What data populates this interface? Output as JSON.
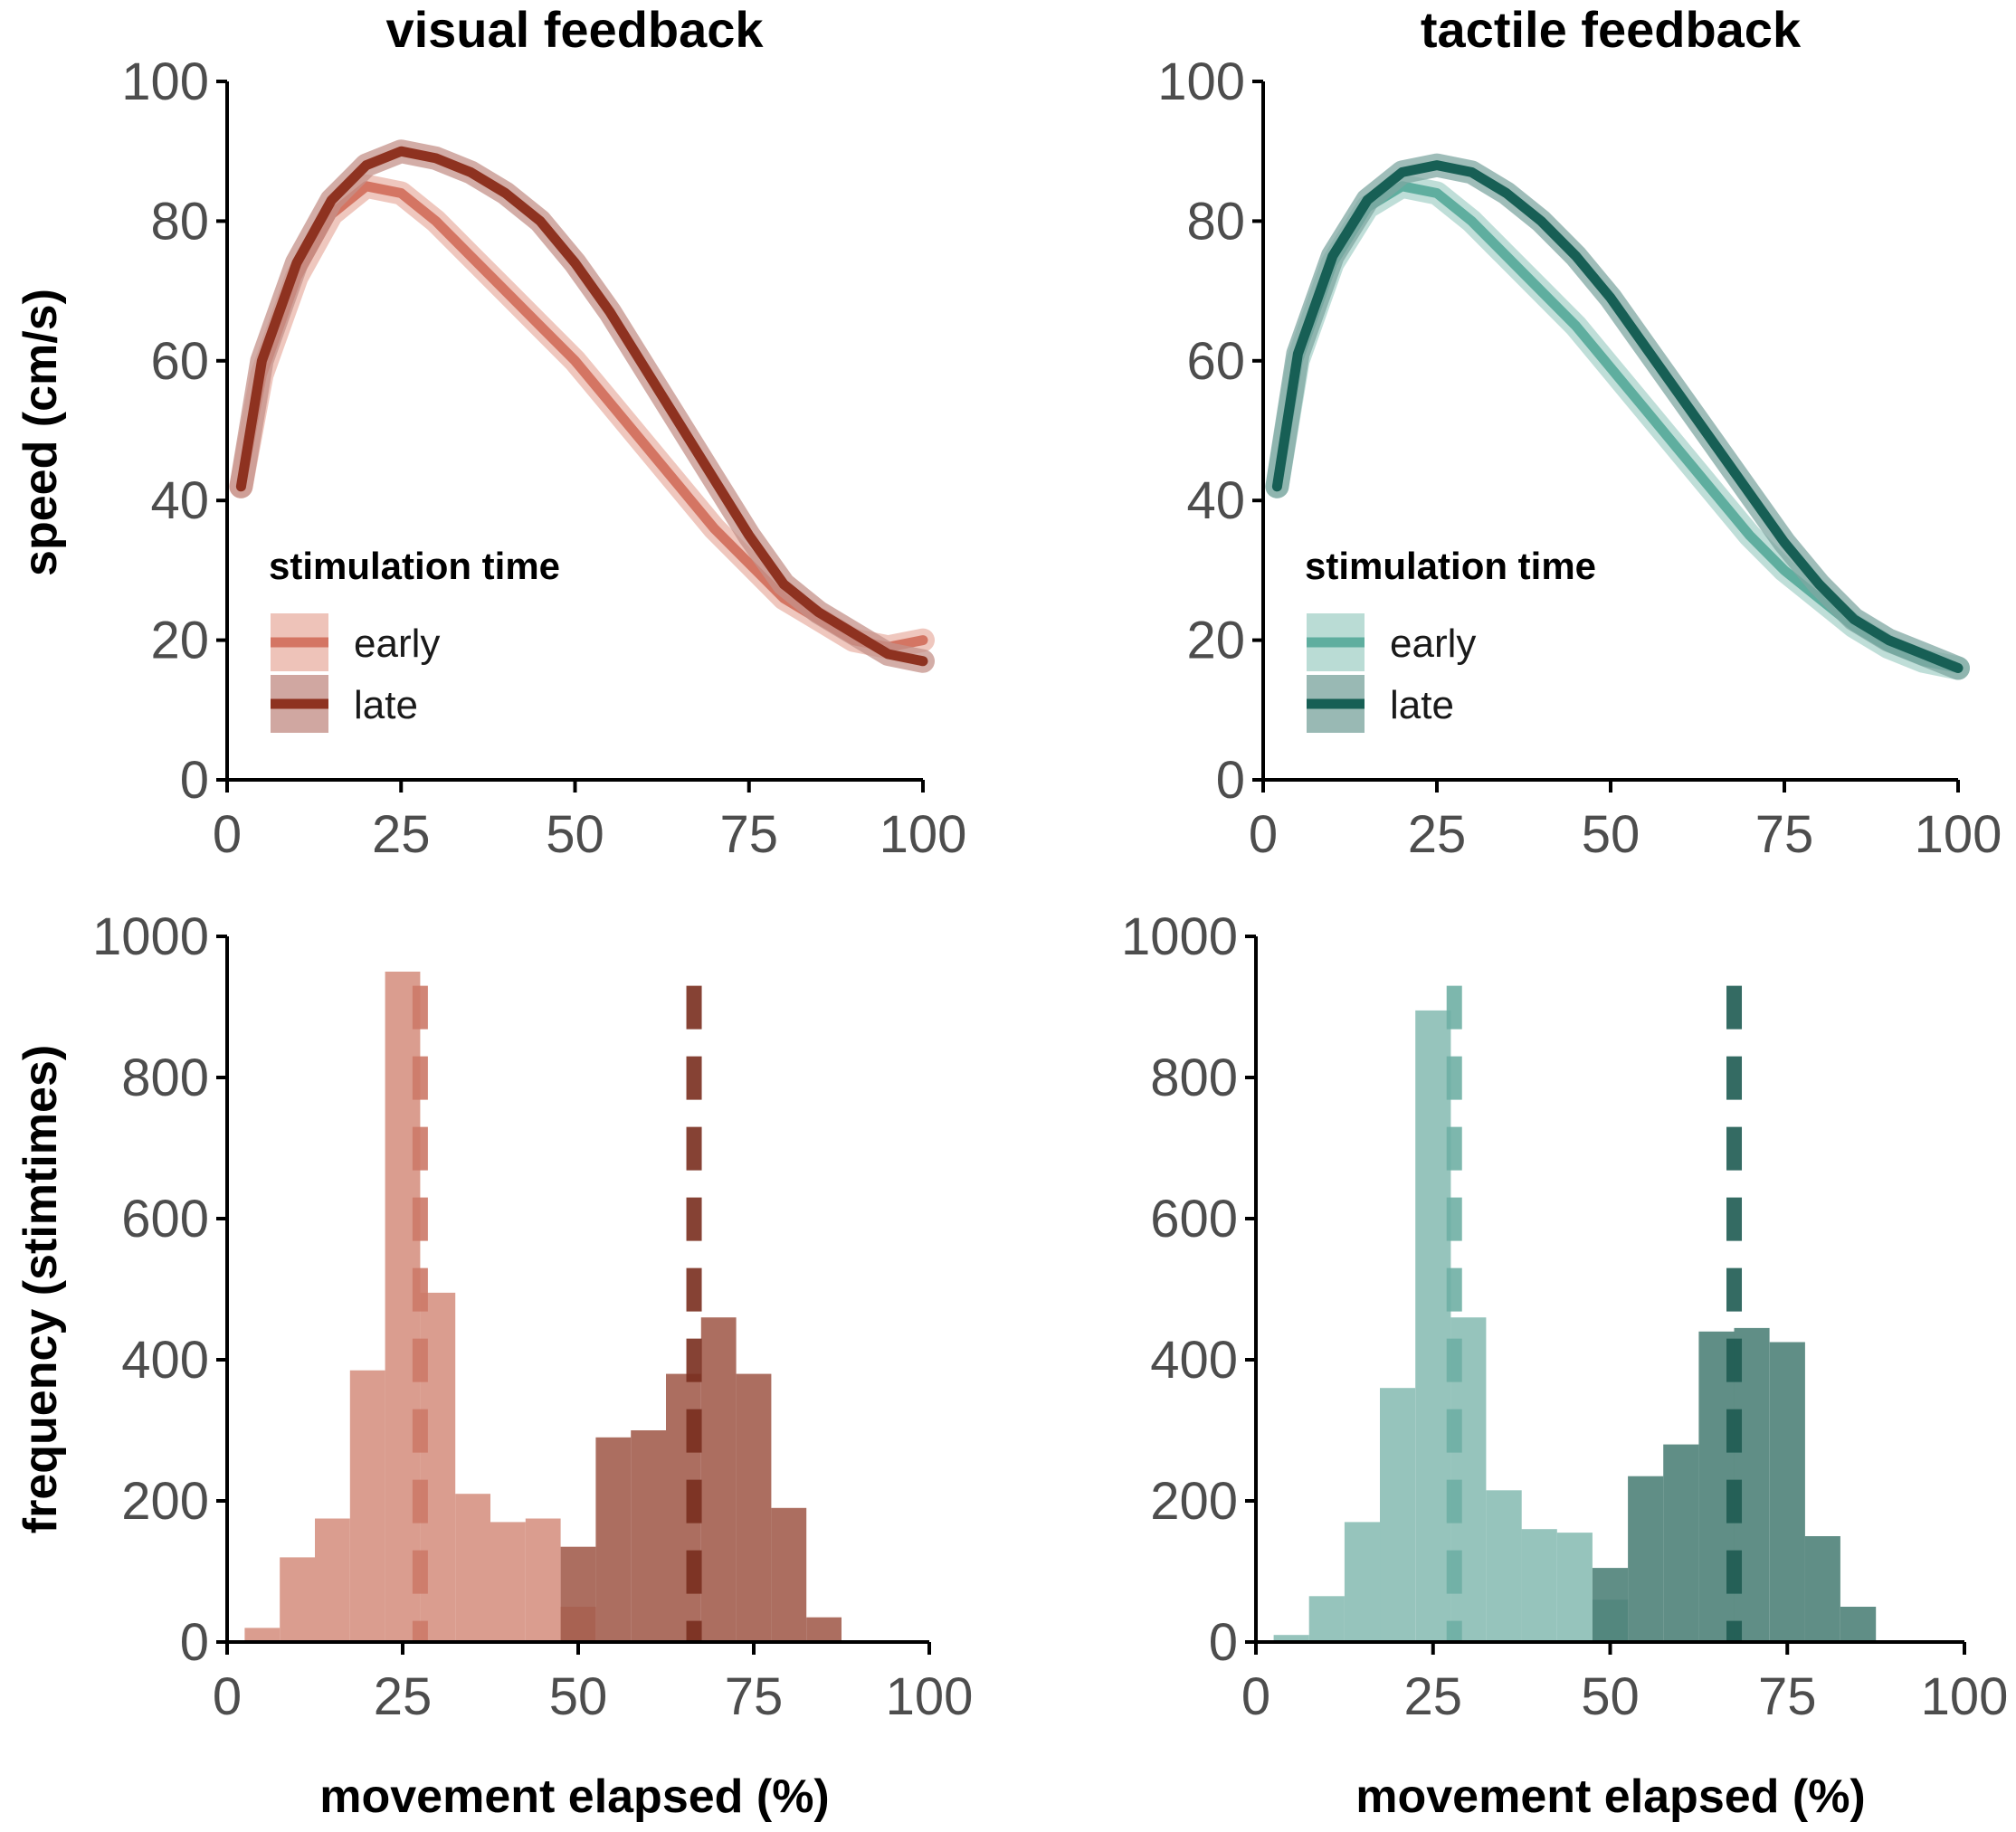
{
  "chart_data": [
    {
      "id": "visual-speed",
      "type": "line",
      "title": "visual feedback",
      "xlabel": "",
      "ylabel": "speed (cm/s)",
      "xlim": [
        0,
        100
      ],
      "ylim": [
        0,
        100
      ],
      "xticks": [
        "0",
        "25",
        "50",
        "75",
        "100"
      ],
      "yticks": [
        "0",
        "20",
        "40",
        "60",
        "80",
        "100"
      ],
      "legend": {
        "title": "stimulation time",
        "position": "bottom-left"
      },
      "x": [
        2,
        5,
        10,
        15,
        20,
        25,
        30,
        35,
        40,
        45,
        50,
        55,
        60,
        65,
        70,
        75,
        80,
        85,
        90,
        95,
        100
      ],
      "series": [
        {
          "name": "early",
          "color": "#d47563",
          "band_color": "#eab4a8",
          "values": [
            42,
            58,
            72,
            81,
            85,
            84,
            80,
            75,
            70,
            65,
            60,
            54,
            48,
            42,
            36,
            31,
            26,
            23,
            20,
            19,
            20
          ]
        },
        {
          "name": "late",
          "color": "#8e3220",
          "band_color": "#c4918a",
          "values": [
            42,
            60,
            74,
            83,
            88,
            90,
            89,
            87,
            84,
            80,
            74,
            67,
            59,
            51,
            43,
            35,
            28,
            24,
            21,
            18,
            17
          ]
        }
      ]
    },
    {
      "id": "tactile-speed",
      "type": "line",
      "title": "tactile feedback",
      "xlabel": "",
      "ylabel": "",
      "xlim": [
        0,
        100
      ],
      "ylim": [
        0,
        100
      ],
      "xticks": [
        "0",
        "25",
        "50",
        "75",
        "100"
      ],
      "yticks": [
        "0",
        "20",
        "40",
        "60",
        "80",
        "100"
      ],
      "legend": {
        "title": "stimulation time",
        "position": "bottom-left"
      },
      "x": [
        2,
        5,
        10,
        15,
        20,
        25,
        30,
        35,
        40,
        45,
        50,
        55,
        60,
        65,
        70,
        75,
        80,
        85,
        90,
        95,
        100
      ],
      "series": [
        {
          "name": "early",
          "color": "#5fae9f",
          "band_color": "#a9d3cb",
          "values": [
            42,
            60,
            74,
            82,
            85,
            84,
            80,
            75,
            70,
            65,
            59,
            53,
            47,
            41,
            35,
            30,
            26,
            22,
            19,
            17,
            16
          ]
        },
        {
          "name": "late",
          "color": "#175f55",
          "band_color": "#7fa7a1",
          "values": [
            42,
            61,
            75,
            83,
            87,
            88,
            87,
            84,
            80,
            75,
            69,
            62,
            55,
            48,
            41,
            34,
            28,
            23,
            20,
            18,
            16
          ]
        }
      ]
    },
    {
      "id": "visual-hist",
      "type": "bar",
      "title": "",
      "xlabel": "movement elapsed (%)",
      "ylabel": "frequency (stimtimes)",
      "xlim": [
        0,
        100
      ],
      "ylim": [
        0,
        1000
      ],
      "xticks": [
        "0",
        "25",
        "50",
        "75",
        "100"
      ],
      "yticks": [
        "0",
        "200",
        "400",
        "600",
        "800",
        "1000"
      ],
      "bin_edges": [
        2.5,
        7.5,
        12.5,
        17.5,
        22.5,
        27.5,
        32.5,
        37.5,
        42.5,
        47.5,
        52.5,
        57.5,
        62.5,
        67.5,
        72.5,
        77.5,
        82.5,
        87.5
      ],
      "series": [
        {
          "name": "early",
          "color": "#d58f7f",
          "mean": 27.5,
          "values": [
            20,
            120,
            175,
            385,
            950,
            495,
            210,
            170,
            175,
            50,
            0,
            0,
            0,
            0,
            0,
            0,
            0
          ]
        },
        {
          "name": "late",
          "color": "#a05a4a",
          "mean": 66.5,
          "values": [
            0,
            0,
            0,
            0,
            0,
            0,
            0,
            0,
            0,
            135,
            290,
            300,
            380,
            460,
            380,
            190,
            35
          ]
        }
      ]
    },
    {
      "id": "tactile-hist",
      "type": "bar",
      "title": "",
      "xlabel": "movement elapsed (%)",
      "ylabel": "",
      "xlim": [
        0,
        100
      ],
      "ylim": [
        0,
        1000
      ],
      "xticks": [
        "0",
        "25",
        "50",
        "75",
        "100"
      ],
      "yticks": [
        "0",
        "200",
        "400",
        "600",
        "800",
        "1000"
      ],
      "bin_edges": [
        2.5,
        7.5,
        12.5,
        17.5,
        22.5,
        27.5,
        32.5,
        37.5,
        42.5,
        47.5,
        52.5,
        57.5,
        62.5,
        67.5,
        72.5,
        77.5,
        82.5,
        87.5
      ],
      "series": [
        {
          "name": "early",
          "color": "#88bcb3",
          "mean": 28,
          "values": [
            10,
            65,
            170,
            360,
            895,
            460,
            215,
            160,
            155,
            60,
            0,
            0,
            0,
            0,
            0,
            0,
            0
          ]
        },
        {
          "name": "late",
          "color": "#4a7e75",
          "mean": 67.5,
          "values": [
            0,
            0,
            0,
            0,
            0,
            0,
            0,
            0,
            0,
            105,
            235,
            280,
            440,
            445,
            425,
            150,
            50
          ]
        }
      ]
    }
  ]
}
